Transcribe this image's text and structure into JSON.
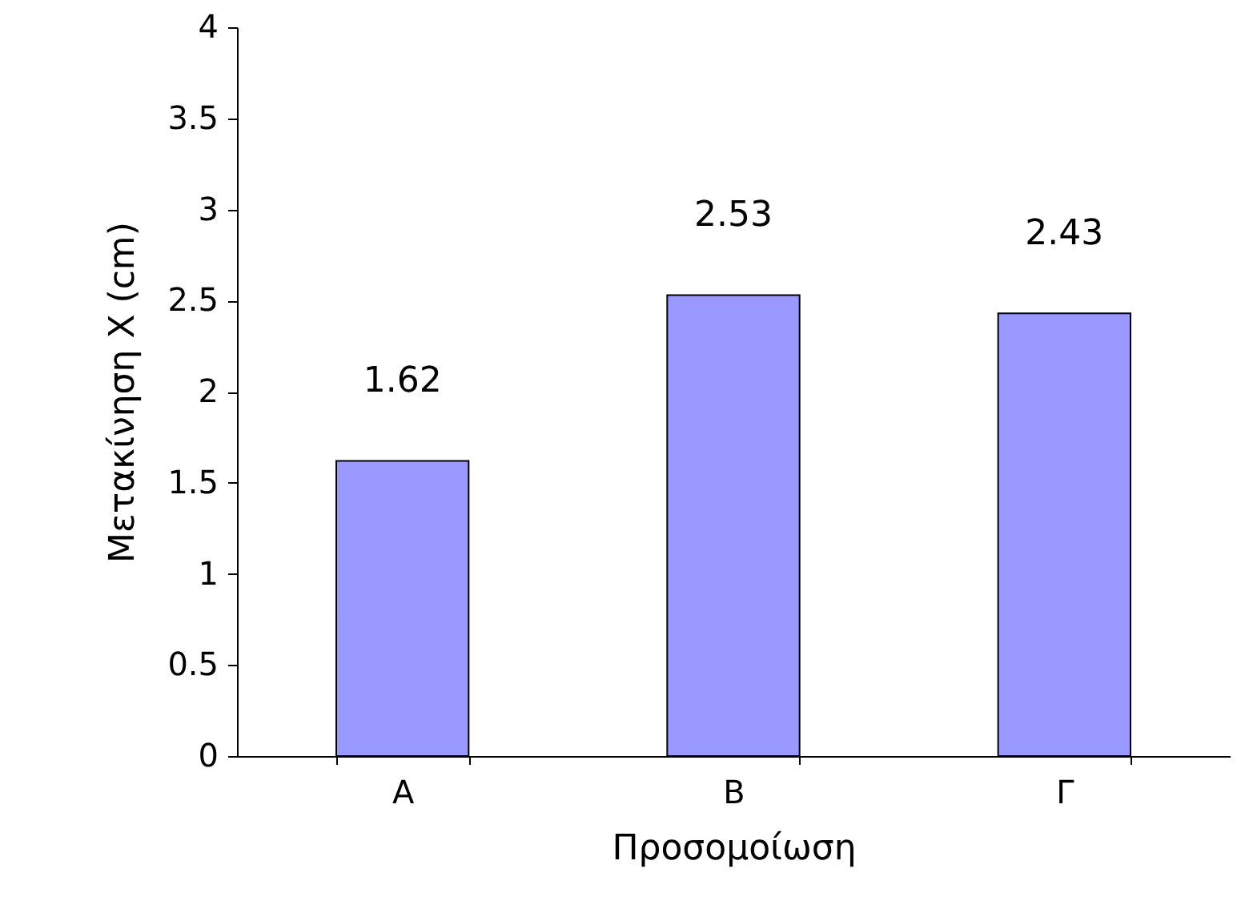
{
  "chart_data": {
    "type": "bar",
    "xlabel": "Προσομοίωση",
    "ylabel": "Μετακίνηση X (cm)",
    "categories": [
      "A",
      "B",
      "Γ"
    ],
    "values": [
      1.62,
      2.53,
      2.43
    ],
    "color": "#9999ff",
    "ylim": [
      0,
      4
    ],
    "yticks": [
      0,
      0.5,
      1,
      1.5,
      2,
      2.5,
      3,
      3.5,
      4
    ],
    "grid": false,
    "data_labels": true
  }
}
